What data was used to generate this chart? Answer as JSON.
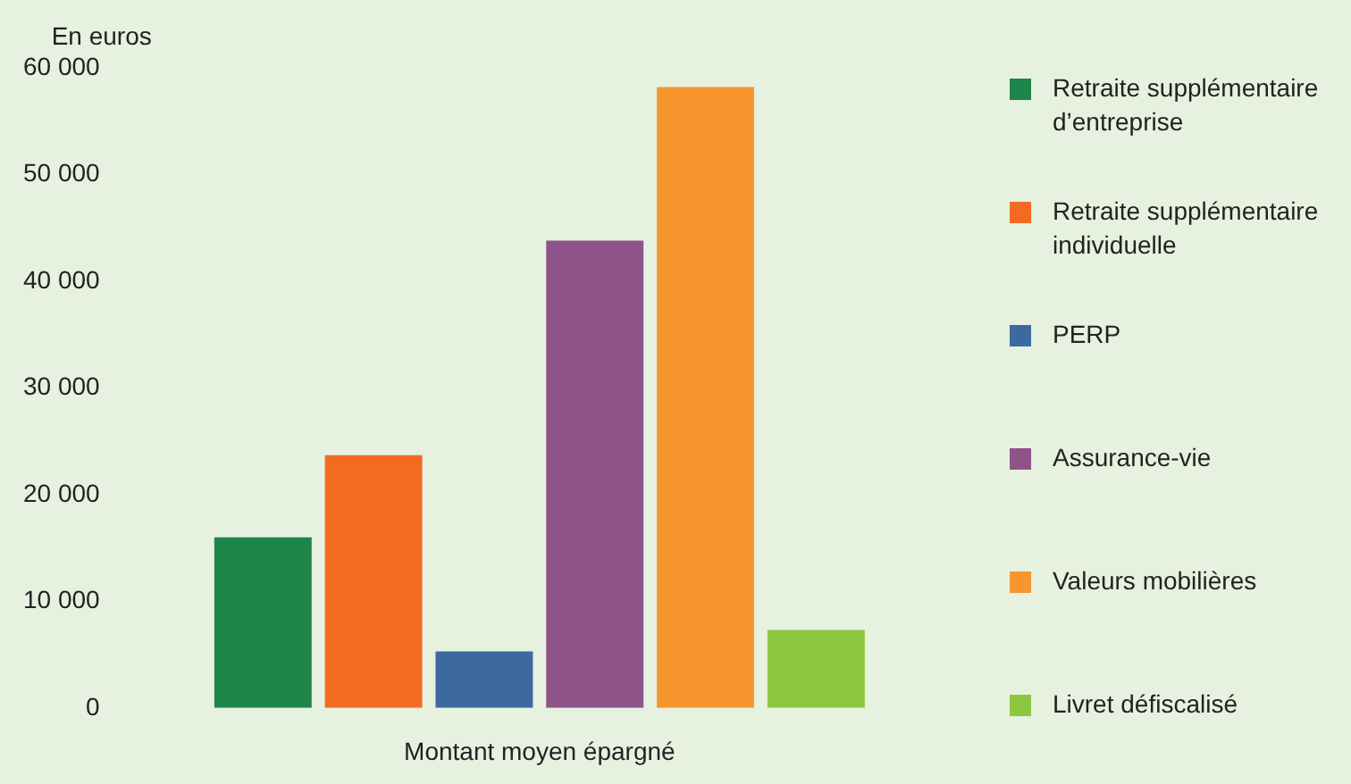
{
  "chart_data": {
    "type": "bar",
    "ylabel": "En euros",
    "xlabel": "Montant moyen épargné",
    "categories": [
      null
    ],
    "series": [
      {
        "name": "Retraite supplémentaire d’entreprise",
        "color": "#1e8449",
        "values": [
          16000
        ]
      },
      {
        "name": "Retraite supplémentaire individuelle",
        "color": "#f26b21",
        "values": [
          23700
        ]
      },
      {
        "name": "PERP",
        "color": "#3d6a9e",
        "values": [
          5300
        ]
      },
      {
        "name": "Assurance-vie",
        "color": "#8e5489",
        "values": [
          43800
        ]
      },
      {
        "name": "Valeurs mobilières",
        "color": "#f7962e",
        "values": [
          58200
        ]
      },
      {
        "name": "Livret défiscalisé",
        "color": "#8dc63f",
        "values": [
          7300
        ]
      }
    ],
    "ylim": [
      0,
      60000
    ],
    "yticks": [
      {
        "value": 0,
        "label": "0"
      },
      {
        "value": 10000,
        "label": "10 000"
      },
      {
        "value": 20000,
        "label": "20 000"
      },
      {
        "value": 30000,
        "label": "30 000"
      },
      {
        "value": 40000,
        "label": "40 000"
      },
      {
        "value": 50000,
        "label": "50 000"
      },
      {
        "value": 60000,
        "label": "60 000"
      }
    ],
    "grid": false,
    "legend": "right"
  }
}
